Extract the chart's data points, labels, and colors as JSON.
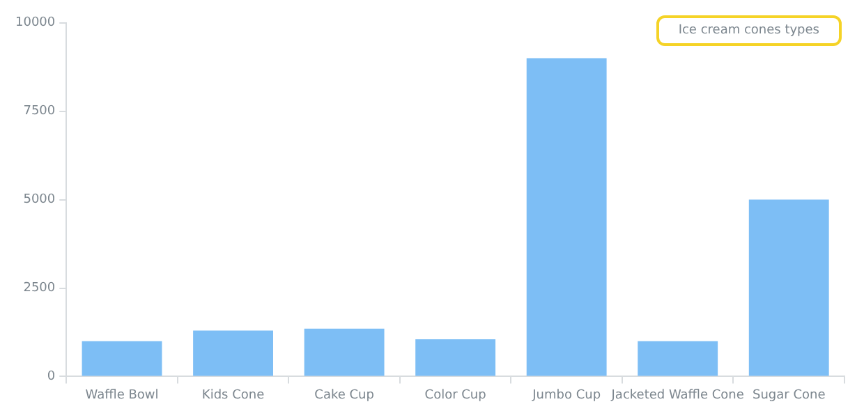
{
  "chart_data": {
    "type": "bar",
    "title": "Ice cream cones types",
    "categories": [
      "Waffle Bowl",
      "Kids Cone",
      "Cake Cup",
      "Color Cup",
      "Jumbo Cup",
      "Jacketed Waffle Cone",
      "Sugar Cone"
    ],
    "values": [
      1000,
      1300,
      1350,
      1050,
      9000,
      1000,
      5000
    ],
    "color": "#7dbef5",
    "ylim": [
      0,
      10000
    ],
    "yticks": [
      0,
      2500,
      5000,
      7500,
      10000
    ],
    "grid": false
  }
}
